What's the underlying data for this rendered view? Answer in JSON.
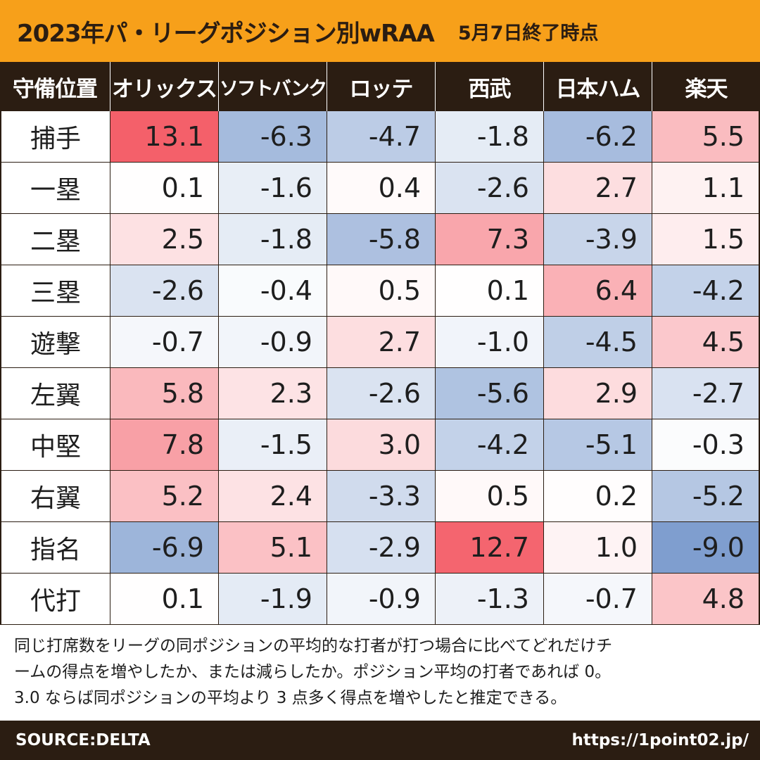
{
  "header": {
    "title": "2023年パ・リーグポジション別wRAA",
    "subtitle": "5月7日終了時点"
  },
  "chart_data": {
    "type": "table",
    "row_header_label": "守備位置",
    "columns": [
      "オリックス",
      "ソフトバンク",
      "ロッテ",
      "西武",
      "日本ハム",
      "楽天"
    ],
    "rows": [
      {
        "label": "捕手",
        "values": [
          "13.1",
          "-6.3",
          "-4.7",
          "-1.8",
          "-6.2",
          "5.5"
        ]
      },
      {
        "label": "一塁",
        "values": [
          "0.1",
          "-1.6",
          "0.4",
          "-2.6",
          "2.7",
          "1.1"
        ]
      },
      {
        "label": "二塁",
        "values": [
          "2.5",
          "-1.8",
          "-5.8",
          "7.3",
          "-3.9",
          "1.5"
        ]
      },
      {
        "label": "三塁",
        "values": [
          "-2.6",
          "-0.4",
          "0.5",
          "0.1",
          "6.4",
          "-4.2"
        ]
      },
      {
        "label": "遊撃",
        "values": [
          "-0.7",
          "-0.9",
          "2.7",
          "-1.0",
          "-4.5",
          "4.5"
        ]
      },
      {
        "label": "左翼",
        "values": [
          "5.8",
          "2.3",
          "-2.6",
          "-5.6",
          "2.9",
          "-2.7"
        ]
      },
      {
        "label": "中堅",
        "values": [
          "7.8",
          "-1.5",
          "3.0",
          "-4.2",
          "-5.1",
          "-0.3"
        ]
      },
      {
        "label": "右翼",
        "values": [
          "5.2",
          "2.4",
          "-3.3",
          "0.5",
          "0.2",
          "-5.2"
        ]
      },
      {
        "label": "指名",
        "values": [
          "-6.9",
          "5.1",
          "-2.9",
          "12.7",
          "1.0",
          "-9.0"
        ]
      },
      {
        "label": "代打",
        "values": [
          "0.1",
          "-1.9",
          "-0.9",
          "-1.3",
          "-0.7",
          "4.8"
        ]
      }
    ]
  },
  "note": {
    "line1": "同じ打席数をリーグの同ポジションの平均的な打者が打つ場合に比べてどれだけチ",
    "line2": "ームの得点を増やしたか、または減らしたか。ポジション平均の打者であれば 0。",
    "line3": "3.0 ならば同ポジションの平均より 3 点多く得点を増やしたと推定できる。"
  },
  "footer": {
    "source": "SOURCE:DELTA",
    "url": "https://1point02.jp/"
  },
  "colors": {
    "title_bg": "#f7a01a",
    "header_bg": "#2b1d12",
    "positive_max": "#f4606a",
    "negative_max": "#7f9ecf"
  }
}
